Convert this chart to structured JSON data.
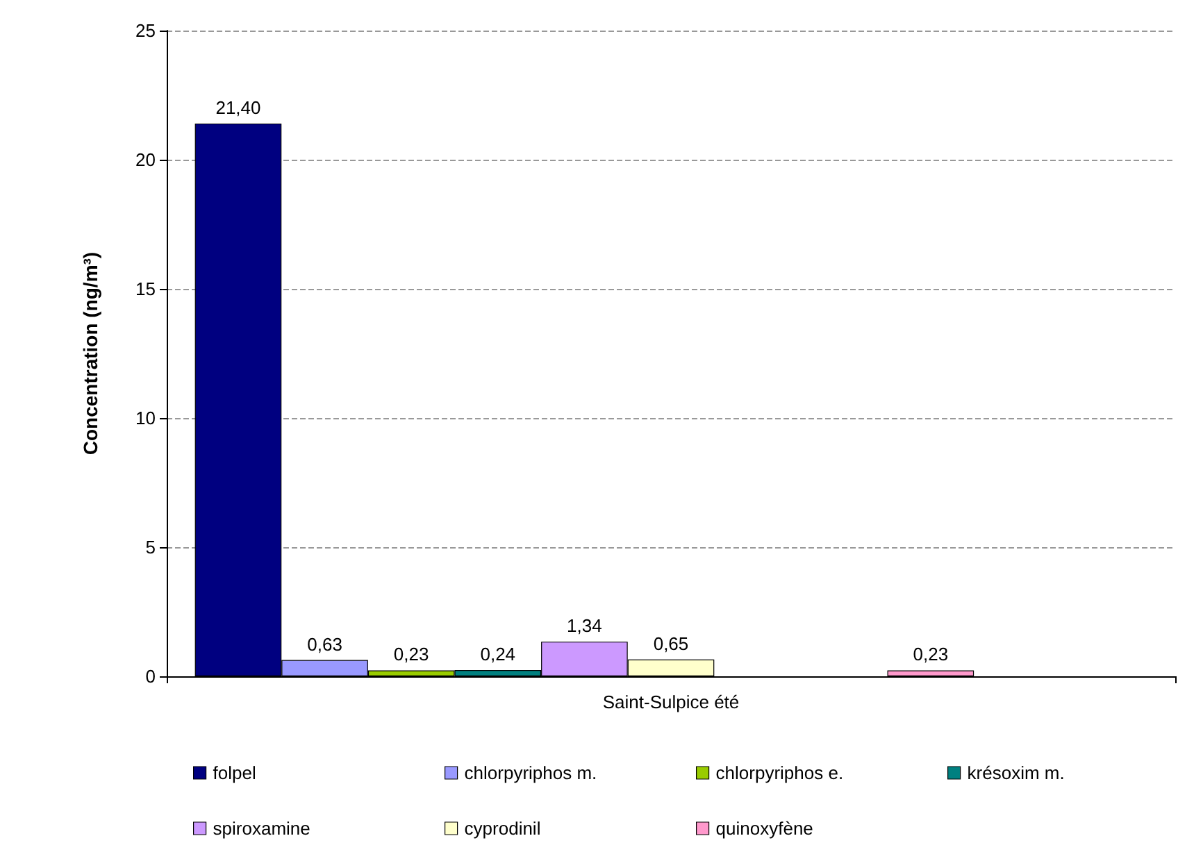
{
  "chart_data": {
    "type": "bar",
    "ylabel": "Concentration (ng/m³)",
    "categories": [
      "Saint-Sulpice été"
    ],
    "series": [
      {
        "name": "folpel",
        "color": "#000080",
        "values": [
          21.4
        ],
        "value_labels": [
          "21,40"
        ]
      },
      {
        "name": "chlorpyriphos m.",
        "color": "#9999ff",
        "values": [
          0.63
        ],
        "value_labels": [
          "0,63"
        ]
      },
      {
        "name": "chlorpyriphos e.",
        "color": "#99cc00",
        "values": [
          0.23
        ],
        "value_labels": [
          "0,23"
        ]
      },
      {
        "name": "krésoxim m.",
        "color": "#008080",
        "values": [
          0.24
        ],
        "value_labels": [
          "0,24"
        ]
      },
      {
        "name": "spiroxamine",
        "color": "#cc99ff",
        "values": [
          1.34
        ],
        "value_labels": [
          "1,34"
        ]
      },
      {
        "name": "cyprodinil",
        "color": "#ffffcc",
        "values": [
          0.65
        ],
        "value_labels": [
          "0,65"
        ]
      },
      {
        "values": [
          null
        ]
      },
      {
        "values": [
          null
        ]
      },
      {
        "name": "quinoxyfène",
        "color": "#ff99cc",
        "values": [
          0.23
        ],
        "value_labels": [
          "0,23"
        ]
      },
      {
        "values": [
          null
        ]
      },
      {
        "values": [
          null
        ]
      }
    ],
    "ylim": [
      0,
      25
    ],
    "yticks": [
      0,
      5,
      10,
      15,
      20,
      25
    ],
    "grid": "y",
    "legend": "bottom"
  }
}
